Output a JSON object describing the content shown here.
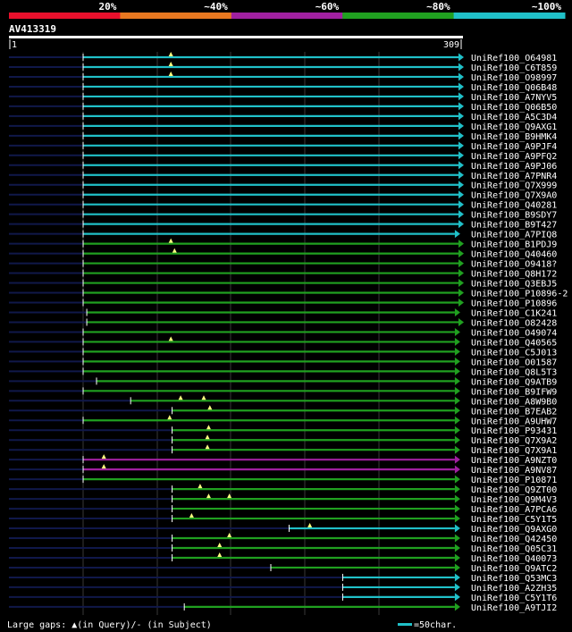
{
  "query": {
    "id": "AV413319",
    "start": "1",
    "end": "309",
    "length": 309
  },
  "color_scale": {
    "segments": [
      {
        "label": "20%",
        "color": "#e8102c"
      },
      {
        "label": "~40%",
        "color": "#e87820"
      },
      {
        "label": "~60%",
        "color": "#a020a0"
      },
      {
        "label": "~80%",
        "color": "#20a020"
      },
      {
        "label": "~100%",
        "color": "#20c0c8"
      }
    ]
  },
  "colors": {
    "cyan": "#20c0c8",
    "green": "#20a020",
    "purple": "#a020a0",
    "dark": "#10184a",
    "gap": "#ffff80",
    "grid": "#606060"
  },
  "hits": [
    {
      "label": "UniRef100_O64981",
      "color": "cyan",
      "qs": 1,
      "qe": 309,
      "gaps": [
        73
      ]
    },
    {
      "label": "UniRef100_C6T859",
      "color": "cyan",
      "qs": 1,
      "qe": 309,
      "gaps": [
        73
      ]
    },
    {
      "label": "UniRef100_O98997",
      "color": "cyan",
      "qs": 1,
      "qe": 309,
      "gaps": [
        73
      ]
    },
    {
      "label": "UniRef100_Q06B48",
      "color": "cyan",
      "qs": 1,
      "qe": 309,
      "gaps": []
    },
    {
      "label": "UniRef100_A7NYV5",
      "color": "cyan",
      "qs": 1,
      "qe": 309,
      "gaps": []
    },
    {
      "label": "UniRef100_Q06B50",
      "color": "cyan",
      "qs": 1,
      "qe": 309,
      "gaps": []
    },
    {
      "label": "UniRef100_A5C3D4",
      "color": "cyan",
      "qs": 1,
      "qe": 309,
      "gaps": []
    },
    {
      "label": "UniRef100_Q9AXG1",
      "color": "cyan",
      "qs": 1,
      "qe": 309,
      "gaps": []
    },
    {
      "label": "UniRef100_B9HMK4",
      "color": "cyan",
      "qs": 1,
      "qe": 309,
      "gaps": []
    },
    {
      "label": "UniRef100_A9PJF4",
      "color": "cyan",
      "qs": 1,
      "qe": 309,
      "gaps": []
    },
    {
      "label": "UniRef100_A9PFQ2",
      "color": "cyan",
      "qs": 1,
      "qe": 309,
      "gaps": []
    },
    {
      "label": "UniRef100_A9PJ06",
      "color": "cyan",
      "qs": 1,
      "qe": 309,
      "gaps": []
    },
    {
      "label": "UniRef100_A7PNR4",
      "color": "cyan",
      "qs": 1,
      "qe": 309,
      "gaps": []
    },
    {
      "label": "UniRef100_Q7X999",
      "color": "cyan",
      "qs": 1,
      "qe": 309,
      "gaps": []
    },
    {
      "label": "UniRef100_Q7X9A0",
      "color": "cyan",
      "qs": 1,
      "qe": 309,
      "gaps": []
    },
    {
      "label": "UniRef100_Q40281",
      "color": "cyan",
      "qs": 1,
      "qe": 309,
      "gaps": []
    },
    {
      "label": "UniRef100_B9SDY7",
      "color": "cyan",
      "qs": 1,
      "qe": 309,
      "gaps": []
    },
    {
      "label": "UniRef100_B9T427",
      "color": "cyan",
      "qs": 1,
      "qe": 309,
      "gaps": []
    },
    {
      "label": "UniRef100_A7PIQ8",
      "color": "cyan",
      "qs": 1,
      "qe": 306,
      "gaps": []
    },
    {
      "label": "UniRef100_B1PDJ9",
      "color": "green",
      "qs": 1,
      "qe": 309,
      "gaps": [
        73
      ]
    },
    {
      "label": "UniRef100_Q40460",
      "color": "green",
      "qs": 1,
      "qe": 309,
      "gaps": [
        76
      ]
    },
    {
      "label": "UniRef100_O9418?",
      "color": "green",
      "qs": 1,
      "qe": 309,
      "gaps": []
    },
    {
      "label": "UniRef100_Q8H172",
      "color": "green",
      "qs": 1,
      "qe": 309,
      "gaps": []
    },
    {
      "label": "UniRef100_Q3EBJ5",
      "color": "green",
      "qs": 1,
      "qe": 309,
      "gaps": []
    },
    {
      "label": "UniRef100_P10896-2",
      "color": "green",
      "qs": 1,
      "qe": 309,
      "gaps": []
    },
    {
      "label": "UniRef100_P10896",
      "color": "green",
      "qs": 1,
      "qe": 309,
      "gaps": []
    },
    {
      "label": "UniRef100_C1K241",
      "color": "green",
      "qs": 4,
      "qe": 306,
      "gaps": []
    },
    {
      "label": "UniRef100_O82428",
      "color": "green",
      "qs": 4,
      "qe": 309,
      "gaps": []
    },
    {
      "label": "UniRef100_O49074",
      "color": "green",
      "qs": 1,
      "qe": 306,
      "gaps": []
    },
    {
      "label": "UniRef100_Q40565",
      "color": "green",
      "qs": 1,
      "qe": 306,
      "gaps": [
        73
      ]
    },
    {
      "label": "UniRef100_C5J013",
      "color": "green",
      "qs": 1,
      "qe": 306,
      "gaps": []
    },
    {
      "label": "UniRef100_O01587",
      "color": "green",
      "qs": 1,
      "qe": 306,
      "gaps": []
    },
    {
      "label": "UniRef100_Q8L5T3",
      "color": "green",
      "qs": 1,
      "qe": 306,
      "gaps": []
    },
    {
      "label": "UniRef100_Q9ATB9",
      "color": "green",
      "qs": 12,
      "qe": 306,
      "gaps": []
    },
    {
      "label": "UniRef100_B9IFW9",
      "color": "green",
      "qs": 1,
      "qe": 306,
      "gaps": []
    },
    {
      "label": "UniRef100_A8W9B0",
      "color": "green",
      "qs": 40,
      "qe": 306,
      "gaps": [
        81,
        100
      ]
    },
    {
      "label": "UniRef100_B7EAB2",
      "color": "green",
      "qs": 74,
      "qe": 306,
      "gaps": [
        105
      ]
    },
    {
      "label": "UniRef100_A9UHW7",
      "color": "green",
      "qs": 1,
      "qe": 306,
      "gaps": [
        72
      ]
    },
    {
      "label": "UniRef100_P93431",
      "color": "green",
      "qs": 74,
      "qe": 306,
      "gaps": [
        104
      ]
    },
    {
      "label": "UniRef100_Q7X9A2",
      "color": "green",
      "qs": 74,
      "qe": 306,
      "gaps": [
        103
      ]
    },
    {
      "label": "UniRef100_Q7X9A1",
      "color": "green",
      "qs": 74,
      "qe": 306,
      "gaps": [
        103
      ]
    },
    {
      "label": "UniRef100_A9NZT0",
      "color": "purple",
      "qs": 1,
      "qe": 306,
      "gaps": [
        18
      ]
    },
    {
      "label": "UniRef100_A9NV87",
      "color": "purple",
      "qs": 1,
      "qe": 306,
      "gaps": [
        18
      ]
    },
    {
      "label": "UniRef100_P10871",
      "color": "green",
      "qs": 1,
      "qe": 306,
      "gaps": []
    },
    {
      "label": "UniRef100_Q9ZT00",
      "color": "green",
      "qs": 74,
      "qe": 306,
      "gaps": [
        97
      ]
    },
    {
      "label": "UniRef100_Q9M4V3",
      "color": "green",
      "qs": 74,
      "qe": 306,
      "gaps": [
        104,
        121
      ]
    },
    {
      "label": "UniRef100_A7PCA6",
      "color": "green",
      "qs": 74,
      "qe": 306,
      "gaps": []
    },
    {
      "label": "UniRef100_C5Y1T5",
      "color": "green",
      "qs": 74,
      "qe": 306,
      "gaps": [
        90
      ]
    },
    {
      "label": "UniRef100_Q9AXG0",
      "color": "cyan",
      "qs": 170,
      "qe": 306,
      "gaps": [
        187
      ]
    },
    {
      "label": "UniRef100_Q42450",
      "color": "green",
      "qs": 74,
      "qe": 306,
      "gaps": [
        121
      ]
    },
    {
      "label": "UniRef100_Q05C31",
      "color": "green",
      "qs": 74,
      "qe": 306,
      "gaps": [
        113
      ]
    },
    {
      "label": "UniRef100_Q40073",
      "color": "green",
      "qs": 74,
      "qe": 306,
      "gaps": [
        113
      ]
    },
    {
      "label": "UniRef100_Q9ATC2",
      "color": "green",
      "qs": 155,
      "qe": 306,
      "gaps": []
    },
    {
      "label": "UniRef100_Q53MC3",
      "color": "cyan",
      "qs": 214,
      "qe": 306,
      "gaps": []
    },
    {
      "label": "UniRef100_A2ZH35",
      "color": "cyan",
      "qs": 214,
      "qe": 306,
      "gaps": []
    },
    {
      "label": "UniRef100_C5Y1T6",
      "color": "cyan",
      "qs": 214,
      "qe": 306,
      "gaps": []
    },
    {
      "label": "UniRef100_A9TJI2",
      "color": "green",
      "qs": 84,
      "qe": 306,
      "gaps": []
    }
  ],
  "legend": {
    "text": "Large gaps: ▲(in Query)/- (in Subject)",
    "scale_text": "=50char."
  }
}
